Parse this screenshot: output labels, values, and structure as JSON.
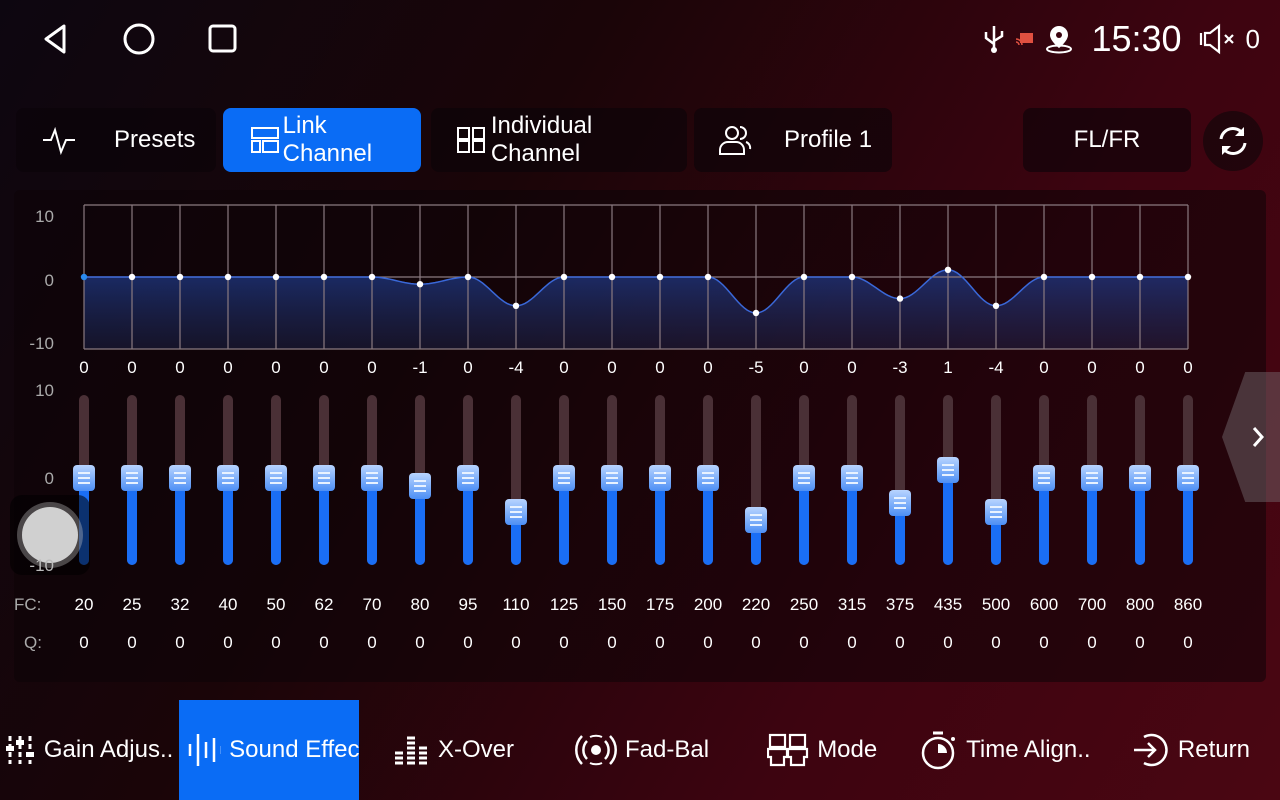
{
  "nav": {
    "back": "back-icon",
    "home": "home-icon",
    "recents": "recents-icon"
  },
  "status": {
    "time": "15:30",
    "volume": "0",
    "icons": [
      "usb-icon",
      "cast-icon",
      "location-icon",
      "volume-mute-icon"
    ]
  },
  "tabs": [
    {
      "label": "Presets",
      "icon": "waveform-icon"
    },
    {
      "label": "Link Channel",
      "icon": "link-layout-icon",
      "active": true
    },
    {
      "label": "Individual Channel",
      "icon": "grid-icon"
    },
    {
      "label": "Profile 1",
      "icon": "users-icon"
    }
  ],
  "channel_button": "FL/FR",
  "eq": {
    "graph_y_labels": [
      "10",
      "0",
      "-10"
    ],
    "slider_y_labels": [
      "10",
      "0",
      "-10"
    ],
    "gains": [
      0,
      0,
      0,
      0,
      0,
      0,
      0,
      -1,
      0,
      -4,
      0,
      0,
      0,
      0,
      -5,
      0,
      0,
      -3,
      1,
      -4,
      0,
      0,
      0,
      0
    ],
    "range": [
      -10,
      10
    ],
    "fc_label": "FC:",
    "q_label": "Q:",
    "fc": [
      "20",
      "25",
      "32",
      "40",
      "50",
      "62",
      "70",
      "80",
      "95",
      "110",
      "125",
      "150",
      "175",
      "200",
      "220",
      "250",
      "315",
      "375",
      "435",
      "500",
      "600",
      "700",
      "800",
      "860"
    ],
    "q": [
      "0",
      "0",
      "0",
      "0",
      "0",
      "0",
      "0",
      "0",
      "0",
      "0",
      "0",
      "0",
      "0",
      "0",
      "0",
      "0",
      "0",
      "0",
      "0",
      "0",
      "0",
      "0",
      "0",
      "0"
    ],
    "accent": "#0a6cf5"
  },
  "bottom": [
    {
      "label": "Gain Adjus..",
      "icon": "sliders-icon"
    },
    {
      "label": "Sound Effec",
      "icon": "sound-wave-icon",
      "active": true
    },
    {
      "label": "X-Over",
      "icon": "equalizer-bars-icon"
    },
    {
      "label": "Fad-Bal",
      "icon": "speaker-radiate-icon"
    },
    {
      "label": "Mode",
      "icon": "seats-icon"
    },
    {
      "label": "Time Align..",
      "icon": "stopwatch-icon"
    },
    {
      "label": "Return",
      "icon": "return-icon"
    }
  ]
}
